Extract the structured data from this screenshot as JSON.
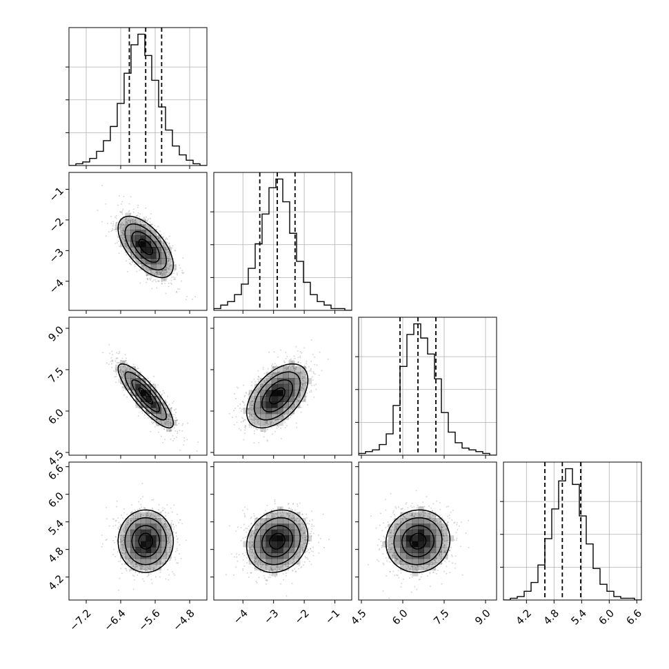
{
  "chart_data": {
    "type": "corner",
    "title": "",
    "parameters": [
      {
        "id": "p0",
        "range": [
          -7.6,
          -4.4
        ],
        "ticks": [
          -7.2,
          -6.4,
          -5.6,
          -4.8
        ],
        "tick_labels": [
          "−7.2",
          "−6.4",
          "−5.6",
          "−4.8"
        ],
        "quantiles": [
          -6.2,
          -5.82,
          -5.45
        ]
      },
      {
        "id": "p1",
        "range": [
          -4.95,
          -0.45
        ],
        "ticks": [
          -4,
          -3,
          -2,
          -1
        ],
        "tick_labels": [
          "−4",
          "−3",
          "−2",
          "−1"
        ],
        "quantiles": [
          -3.45,
          -2.88,
          -2.3
        ]
      },
      {
        "id": "p2",
        "range": [
          4.4,
          9.4
        ],
        "ticks": [
          4.5,
          6.0,
          7.5,
          9.0
        ],
        "tick_labels": [
          "4.5",
          "6.0",
          "7.5",
          "9.0"
        ],
        "quantiles": [
          5.9,
          6.55,
          7.2
        ]
      },
      {
        "id": "p3",
        "range": [
          3.7,
          6.7
        ],
        "ticks": [
          4.2,
          4.8,
          5.4,
          6.0,
          6.6
        ],
        "tick_labels": [
          "4.2",
          "4.8",
          "5.4",
          "6.0",
          "6.6"
        ],
        "quantiles": [
          4.6,
          4.98,
          5.38
        ]
      }
    ],
    "histograms": [
      {
        "param": "p0",
        "bin_start": -7.6,
        "bin_width": 0.16,
        "counts": [
          0,
          1,
          2,
          4,
          8,
          14,
          22,
          35,
          52,
          68,
          74,
          62,
          48,
          33,
          20,
          11,
          6,
          3,
          1,
          0
        ]
      },
      {
        "param": "p1",
        "bin_start": -4.95,
        "bin_width": 0.225,
        "counts": [
          1,
          3,
          5,
          9,
          15,
          24,
          38,
          55,
          70,
          75,
          62,
          44,
          28,
          16,
          9,
          5,
          3,
          1,
          1,
          0
        ]
      },
      {
        "param": "p2",
        "bin_start": 4.4,
        "bin_width": 0.25,
        "counts": [
          1,
          2,
          3,
          6,
          12,
          28,
          50,
          68,
          74,
          66,
          57,
          43,
          24,
          13,
          7,
          4,
          3,
          2,
          1,
          0
        ]
      },
      {
        "param": "p3",
        "bin_start": 3.7,
        "bin_width": 0.15,
        "counts": [
          0,
          1,
          2,
          5,
          10,
          20,
          35,
          52,
          68,
          75,
          66,
          48,
          32,
          18,
          9,
          5,
          2,
          1,
          1,
          0
        ]
      }
    ],
    "pairs": [
      {
        "x": "p0",
        "y": "p1",
        "mean": [
          -5.82,
          -2.88
        ],
        "sd": [
          0.32,
          0.5
        ],
        "rho": -0.6
      },
      {
        "x": "p0",
        "y": "p2",
        "mean": [
          -5.82,
          6.55
        ],
        "sd": [
          0.32,
          0.58
        ],
        "rho": -0.85
      },
      {
        "x": "p1",
        "y": "p2",
        "mean": [
          -2.88,
          6.55
        ],
        "sd": [
          0.5,
          0.58
        ],
        "rho": 0.5
      },
      {
        "x": "p0",
        "y": "p3",
        "mean": [
          -5.82,
          4.98
        ],
        "sd": [
          0.32,
          0.34
        ],
        "rho": 0.0
      },
      {
        "x": "p1",
        "y": "p3",
        "mean": [
          -2.88,
          4.98
        ],
        "sd": [
          0.5,
          0.34
        ],
        "rho": 0.15
      },
      {
        "x": "p2",
        "y": "p3",
        "mean": [
          6.55,
          4.98
        ],
        "sd": [
          0.58,
          0.34
        ],
        "rho": 0.05
      }
    ],
    "contour_levels_sigma": [
      0.5,
      1.0,
      1.5,
      2.0
    ],
    "grid": true,
    "colors": {
      "line": "#000000",
      "grid": "#b0b0b0",
      "points": "#8a8a8a",
      "density": "#000000"
    }
  }
}
